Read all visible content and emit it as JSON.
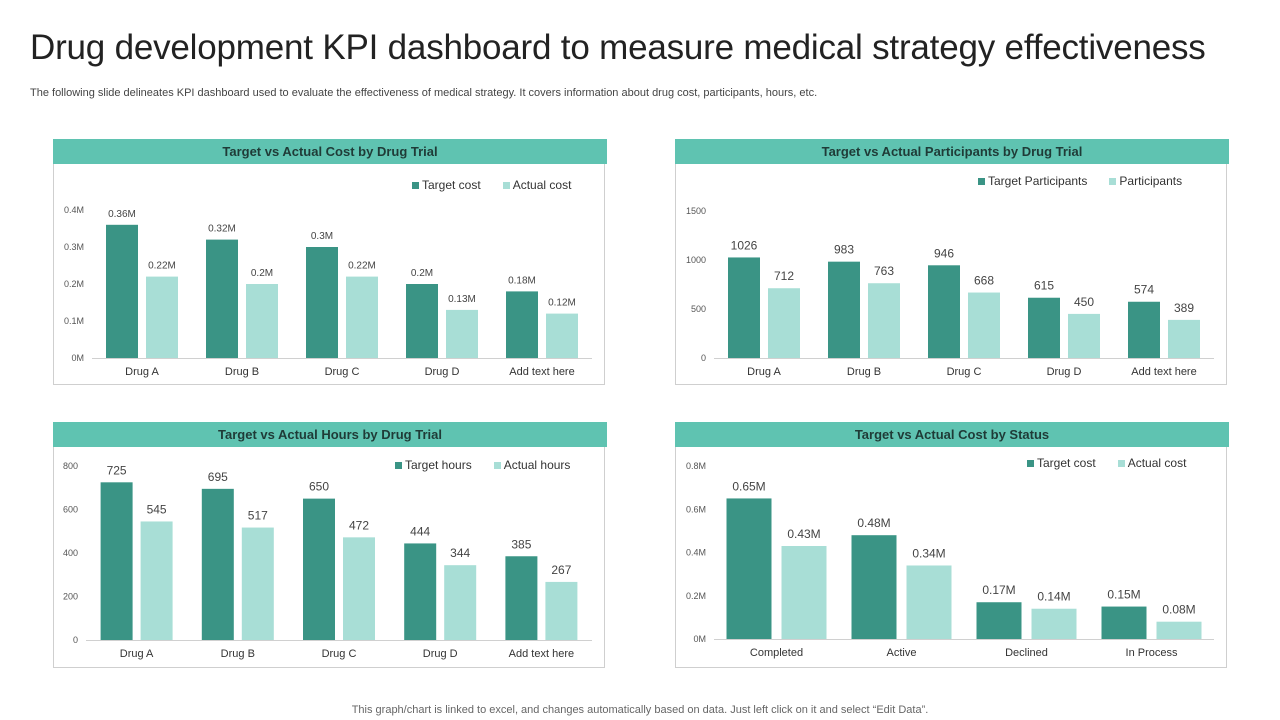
{
  "page": {
    "title": "Drug development KPI dashboard to measure medical strategy effectiveness",
    "subtitle": "The following slide delineates KPI dashboard used to evaluate the effectiveness of medical strategy. It covers information about drug cost, participants, hours, etc.",
    "footer": "This graph/chart is linked to excel,  and changes automatically based on data. Just left click on it and select “Edit Data”."
  },
  "colors": {
    "target": "#3a9485",
    "actual": "#a8ded6",
    "header": "#5fc3b1"
  },
  "chart_data": [
    {
      "type": "bar",
      "title": "Target vs Actual Cost by Drug Trial",
      "categories": [
        "Drug A",
        "Drug B",
        "Drug C",
        "Drug D",
        "Add text here"
      ],
      "series": [
        {
          "name": "Target cost",
          "values": [
            0.36,
            0.32,
            0.3,
            0.2,
            0.18
          ],
          "labels": [
            "0.36M",
            "0.32M",
            "0.3M",
            "0.2M",
            "0.18M"
          ]
        },
        {
          "name": "Actual cost",
          "values": [
            0.22,
            0.2,
            0.22,
            0.13,
            0.12
          ],
          "labels": [
            "0.22M",
            "0.2M",
            "0.22M",
            "0.13M",
            "0.12M"
          ]
        }
      ],
      "ylim": [
        0,
        0.4
      ],
      "yticks": [
        0,
        0.1,
        0.2,
        0.3,
        0.4
      ],
      "ytick_labels": [
        "0M",
        "0.1M",
        "0.2M",
        "0.3M",
        "0.4M"
      ],
      "legend": "top-right",
      "grid": false
    },
    {
      "type": "bar",
      "title": "Target vs Actual Participants by Drug Trial",
      "categories": [
        "Drug A",
        "Drug B",
        "Drug C",
        "Drug D",
        "Add text here"
      ],
      "series": [
        {
          "name": "Target Participants",
          "values": [
            1026,
            983,
            946,
            615,
            574
          ],
          "labels": [
            "1026",
            "983",
            "946",
            "615",
            "574"
          ]
        },
        {
          "name": "Participants",
          "values": [
            712,
            763,
            668,
            450,
            389
          ],
          "labels": [
            "712",
            "763",
            "668",
            "450",
            "389"
          ]
        }
      ],
      "ylim": [
        0,
        1500
      ],
      "yticks": [
        0,
        500,
        1000,
        1500
      ],
      "ytick_labels": [
        "0",
        "500",
        "1000",
        "1500"
      ],
      "legend": "top-right",
      "grid": false
    },
    {
      "type": "bar",
      "title": "Target vs Actual Hours by Drug Trial",
      "categories": [
        "Drug A",
        "Drug B",
        "Drug C",
        "Drug D",
        "Add text here"
      ],
      "series": [
        {
          "name": "Target hours",
          "values": [
            725,
            695,
            650,
            444,
            385
          ],
          "labels": [
            "725",
            "695",
            "650",
            "444",
            "385"
          ]
        },
        {
          "name": "Actual hours",
          "values": [
            545,
            517,
            472,
            344,
            267
          ],
          "labels": [
            "545",
            "517",
            "472",
            "344",
            "267"
          ]
        }
      ],
      "ylim": [
        0,
        800
      ],
      "yticks": [
        0,
        200,
        400,
        600,
        800
      ],
      "ytick_labels": [
        "0",
        "200",
        "400",
        "600",
        "800"
      ],
      "legend": "top-right",
      "grid": false
    },
    {
      "type": "bar",
      "title": "Target vs Actual Cost by Status",
      "categories": [
        "Completed",
        "Active",
        "Declined",
        "In Process"
      ],
      "series": [
        {
          "name": "Target cost",
          "values": [
            0.65,
            0.48,
            0.17,
            0.15
          ],
          "labels": [
            "0.65M",
            "0.48M",
            "0.17M",
            "0.15M"
          ]
        },
        {
          "name": "Actual cost",
          "values": [
            0.43,
            0.34,
            0.14,
            0.08
          ],
          "labels": [
            "0.43M",
            "0.34M",
            "0.14M",
            "0.08M"
          ]
        }
      ],
      "ylim": [
        0,
        0.8
      ],
      "yticks": [
        0,
        0.2,
        0.4,
        0.6,
        0.8
      ],
      "ytick_labels": [
        "0M",
        "0.2M",
        "0.4M",
        "0.6M",
        "0.8M"
      ],
      "legend": "top-right",
      "grid": false
    }
  ]
}
